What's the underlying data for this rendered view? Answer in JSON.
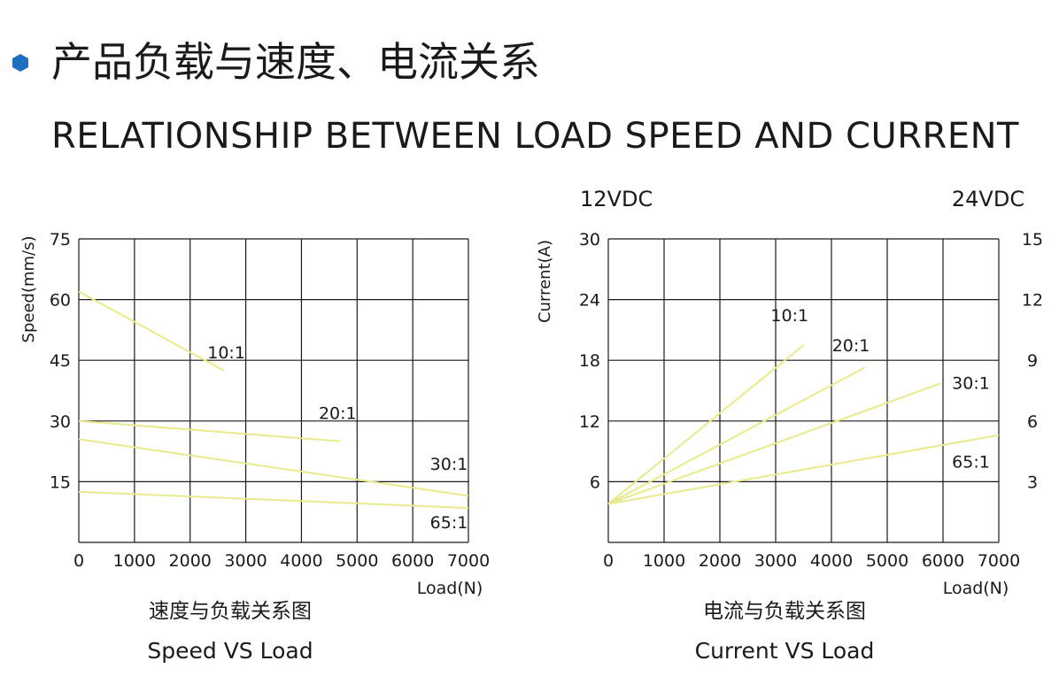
{
  "header": {
    "title_cn": "产品负载与速度、电流关系",
    "title_en": "RELATIONSHIP BETWEEN LOAD SPEED AND CURRENT",
    "bullet_color": "#1e6fc1"
  },
  "line_color": "#e8ea8c",
  "chart_data": [
    {
      "id": "speed",
      "type": "line",
      "title": "Speed VS Load",
      "subtitle": "速度与负载关系图",
      "xlabel": "Load(N)",
      "ylabel": "Speed(mm/s)",
      "xlim": [
        0,
        7000
      ],
      "ylim": [
        0,
        75
      ],
      "xticks": [
        0,
        1000,
        2000,
        3000,
        4000,
        5000,
        6000,
        7000
      ],
      "yticks": [
        15,
        30,
        45,
        60,
        75
      ],
      "grid": true,
      "series": [
        {
          "name": "10:1",
          "points": [
            [
              0,
              62
            ],
            [
              2600,
              42.5
            ]
          ],
          "label_at": [
            2650,
            47
          ]
        },
        {
          "name": "20:1",
          "points": [
            [
              0,
              30
            ],
            [
              4700,
              25
            ]
          ],
          "label_at": [
            4650,
            32
          ]
        },
        {
          "name": "30:1",
          "points": [
            [
              0,
              25.5
            ],
            [
              7000,
              11.5
            ]
          ],
          "label_at": [
            6650,
            19.5
          ]
        },
        {
          "name": "65:1",
          "points": [
            [
              0,
              12.5
            ],
            [
              7000,
              8.5
            ]
          ],
          "label_at": [
            6650,
            5
          ]
        }
      ]
    },
    {
      "id": "current",
      "type": "line",
      "title": "Current VS Load",
      "subtitle": "电流与负载关系图",
      "xlabel": "Load(N)",
      "ylabel": "Current(A)",
      "left_axis_title": "12VDC",
      "right_axis_title": "24VDC",
      "xlim": [
        0,
        7000
      ],
      "ylim": [
        0,
        30
      ],
      "ylim_right": [
        0,
        15
      ],
      "xticks": [
        0,
        1000,
        2000,
        3000,
        4000,
        5000,
        6000,
        7000
      ],
      "yticks": [
        6,
        12,
        18,
        24,
        30
      ],
      "yticks_right": [
        3,
        6,
        9,
        12,
        15
      ],
      "grid": true,
      "series": [
        {
          "name": "10:1",
          "points": [
            [
              0,
              3.8
            ],
            [
              3500,
              19.5
            ]
          ],
          "label_at": [
            3250,
            22.5
          ]
        },
        {
          "name": "20:1",
          "points": [
            [
              0,
              3.8
            ],
            [
              4600,
              17.3
            ]
          ],
          "label_at": [
            4350,
            19.5
          ]
        },
        {
          "name": "30:1",
          "points": [
            [
              0,
              3.8
            ],
            [
              5950,
              15.7
            ]
          ],
          "label_at": [
            6500,
            15.8
          ]
        },
        {
          "name": "65:1",
          "points": [
            [
              0,
              3.8
            ],
            [
              7000,
              10.6
            ]
          ],
          "label_at": [
            6500,
            8
          ]
        }
      ]
    }
  ]
}
